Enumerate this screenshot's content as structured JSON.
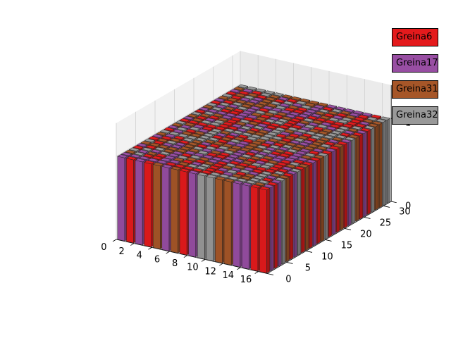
{
  "chart_data": {
    "type": "bar3d",
    "title": "",
    "xlabel": "",
    "ylabel": "",
    "zlabel": "",
    "x_ticks": [
      "0",
      "2",
      "4",
      "6",
      "8",
      "10",
      "12",
      "14",
      "16"
    ],
    "y_ticks": [
      "0",
      "5",
      "10",
      "15",
      "20",
      "25",
      "30"
    ],
    "z_ticks": [
      "0",
      "1"
    ],
    "xlim": [
      0,
      17
    ],
    "ylim": [
      0,
      32
    ],
    "zlim": [
      0,
      1.4
    ],
    "grid": true,
    "legend_placement": "right",
    "bar_height": 1,
    "grid_size": [
      17,
      32
    ],
    "categories": [
      {
        "name": "Greina6",
        "color": "#e41a1c"
      },
      {
        "name": "Greina17",
        "color": "#984ea3"
      },
      {
        "name": "Greina31",
        "color": "#a65628"
      },
      {
        "name": "Greina32",
        "color": "#999999"
      }
    ],
    "front_row_categories": [
      "Greina17",
      "Greina6",
      "Greina17",
      "Greina6",
      "Greina31",
      "Greina17",
      "Greina31",
      "Greina6",
      "Greina17",
      "Greina32",
      "Greina32",
      "Greina31",
      "Greina31",
      "Greina17",
      "Greina17",
      "Greina6",
      "Greina6"
    ],
    "right_column_categories": [
      "Greina6",
      "Greina17",
      "Greina6",
      "Greina17",
      "Greina32",
      "Greina31",
      "Greina6",
      "Greina17",
      "Greina32",
      "Greina6",
      "Greina31",
      "Greina6",
      "Greina17",
      "Greina6",
      "Greina31",
      "Greina32",
      "Greina6",
      "Greina17",
      "Greina6",
      "Greina31",
      "Greina6",
      "Greina17",
      "Greina32",
      "Greina31",
      "Greina6",
      "Greina17",
      "Greina6",
      "Greina32",
      "Greina31",
      "Greina31",
      "Greina32",
      "Greina32"
    ]
  }
}
